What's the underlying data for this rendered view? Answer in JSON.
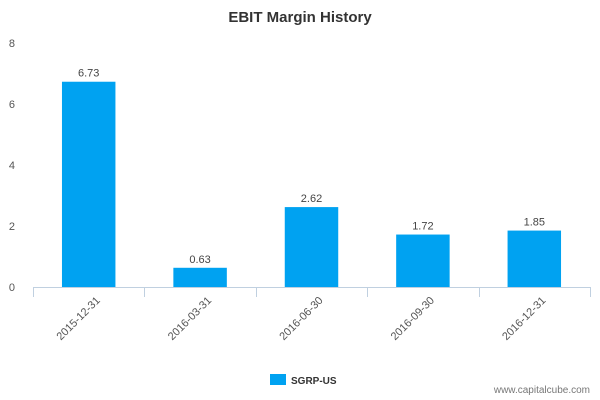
{
  "chart_data": {
    "type": "bar",
    "title": "EBIT Margin History",
    "categories": [
      "2015-12-31",
      "2016-03-31",
      "2016-06-30",
      "2016-09-30",
      "2016-12-31"
    ],
    "series": [
      {
        "name": "SGRP-US",
        "values": [
          6.73,
          0.63,
          2.62,
          1.72,
          1.85
        ],
        "color": "#00a2f1"
      }
    ],
    "data_labels": [
      "6.73",
      "0.63",
      "2.62",
      "1.72",
      "1.85"
    ],
    "ylim": [
      0,
      8
    ],
    "yticks": [
      "0",
      "2",
      "4",
      "6",
      "8"
    ],
    "grid": false,
    "legend": "bottom-center",
    "axis_color": "#c0d0e0"
  },
  "watermark": "www.capitalcube.com"
}
